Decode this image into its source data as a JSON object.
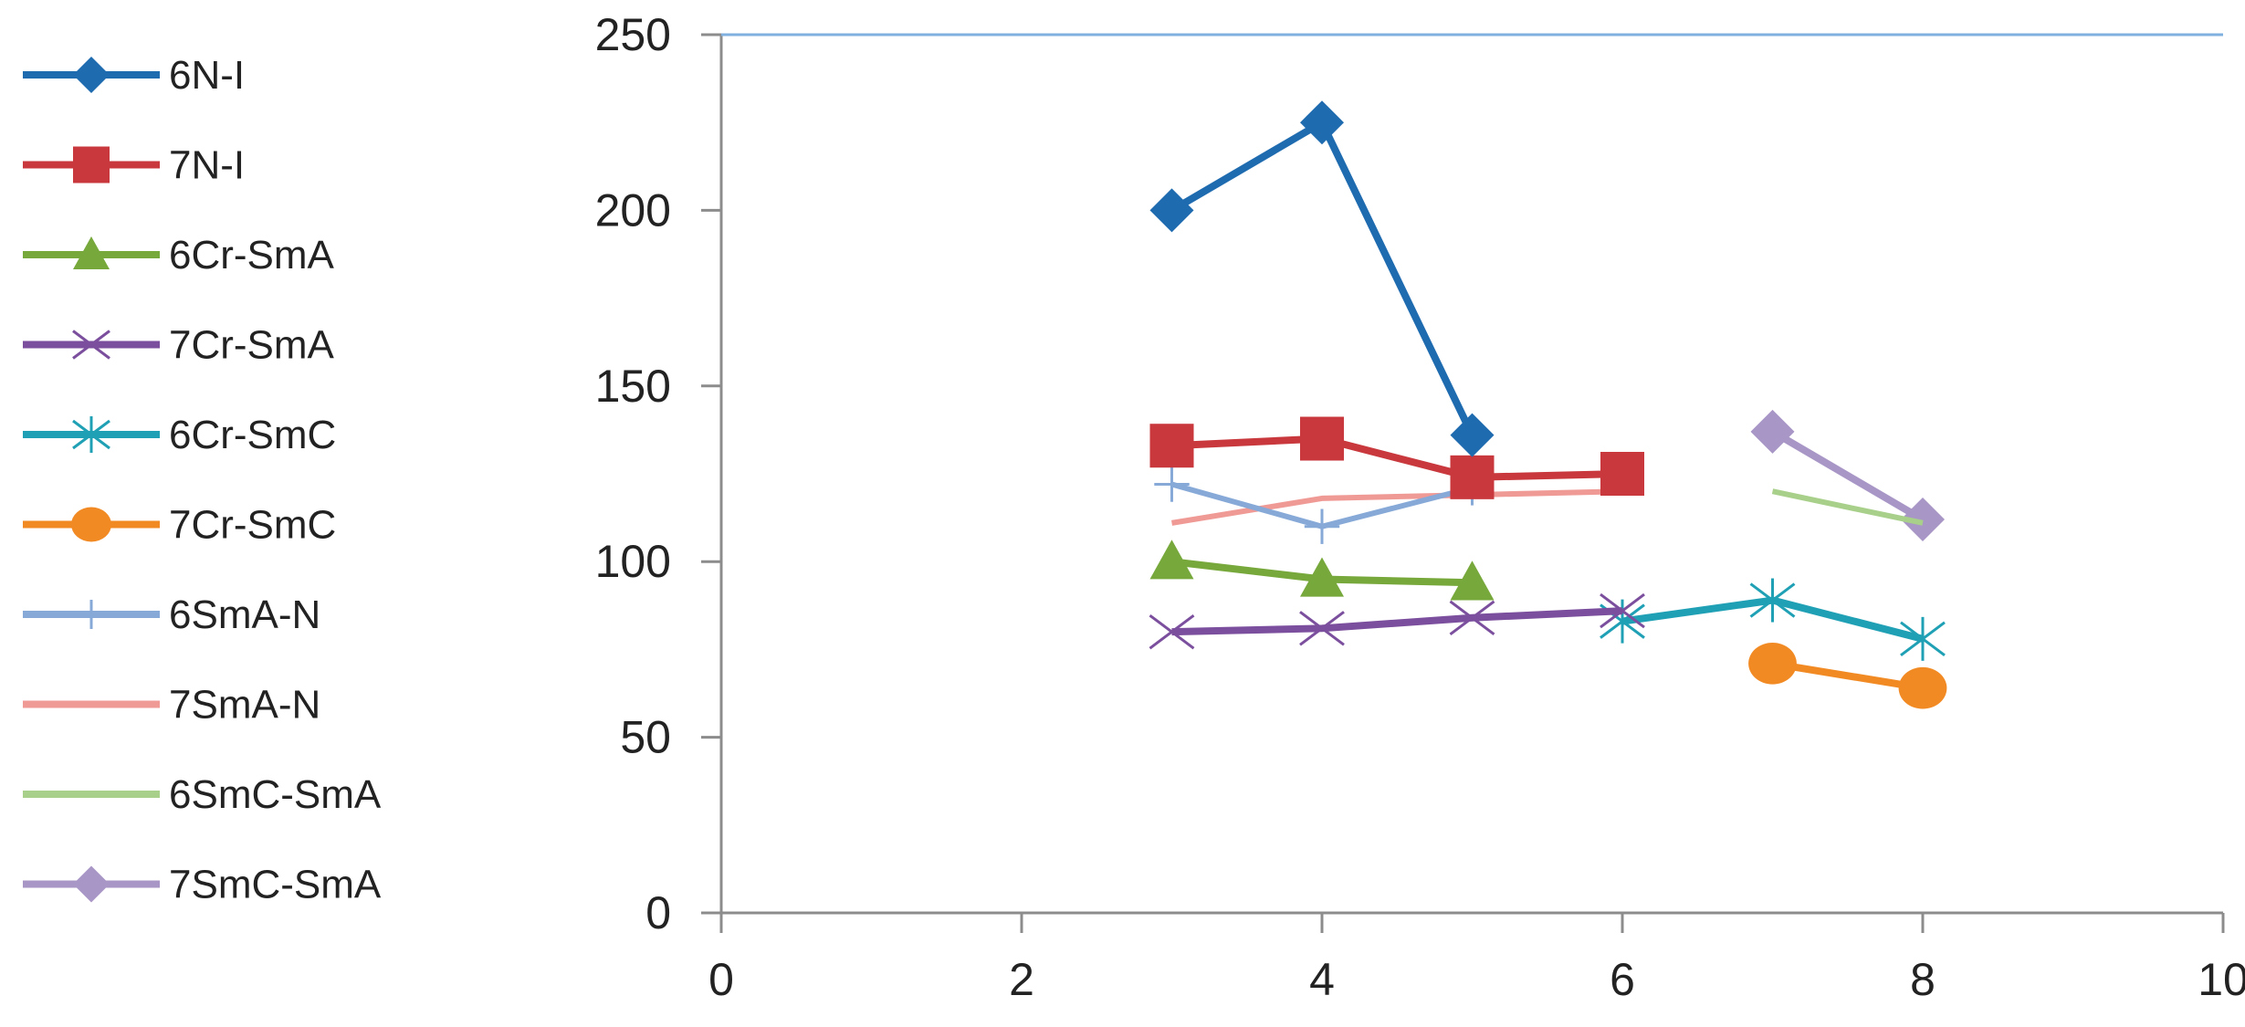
{
  "chart_data": {
    "type": "line",
    "title": "",
    "xlabel": "",
    "ylabel": "",
    "xlim": [
      0,
      10
    ],
    "ylim": [
      0,
      250
    ],
    "x_ticks": [
      "0",
      "2",
      "4",
      "6",
      "8",
      "10"
    ],
    "y_ticks": [
      "0",
      "50",
      "100",
      "150",
      "200",
      "250"
    ],
    "grid": false,
    "legend_position": "left",
    "series": [
      {
        "name": "6N-I",
        "color": "#1F6BB0",
        "marker": "diamond",
        "x": [
          3,
          4,
          5
        ],
        "y": [
          200,
          225,
          136
        ]
      },
      {
        "name": "7N-I",
        "color": "#C8383C",
        "marker": "square",
        "x": [
          3,
          4,
          5,
          6
        ],
        "y": [
          133,
          135,
          124,
          125
        ]
      },
      {
        "name": "6Cr-SmA",
        "color": "#77A83B",
        "marker": "triangle",
        "x": [
          3,
          4,
          5
        ],
        "y": [
          100,
          95,
          94
        ]
      },
      {
        "name": "7Cr-SmA",
        "color": "#7B4F9D",
        "marker": "x",
        "x": [
          3,
          4,
          5,
          6
        ],
        "y": [
          80,
          81,
          84,
          86
        ]
      },
      {
        "name": "6Cr-SmC",
        "color": "#1FA0B5",
        "marker": "star",
        "x": [
          6,
          7,
          8
        ],
        "y": [
          83,
          89,
          78
        ]
      },
      {
        "name": "7Cr-SmC",
        "color": "#F28A24",
        "marker": "circle",
        "x": [
          7,
          8
        ],
        "y": [
          71,
          64
        ]
      },
      {
        "name": "6SmA-N",
        "color": "#86A9D8",
        "marker": "plus",
        "x": [
          3,
          4,
          5
        ],
        "y": [
          122,
          110,
          121
        ]
      },
      {
        "name": "7SmA-N",
        "color": "#F09A96",
        "marker": "none",
        "x": [
          3,
          4,
          5,
          6
        ],
        "y": [
          111,
          118,
          119,
          120
        ]
      },
      {
        "name": "6SmC-SmA",
        "color": "#A8D08A",
        "marker": "none",
        "x": [
          7,
          8
        ],
        "y": [
          120,
          111
        ]
      },
      {
        "name": "7SmC-SmA",
        "color": "#A896C6",
        "marker": "diamond",
        "x": [
          7,
          8
        ],
        "y": [
          137,
          112
        ]
      }
    ]
  }
}
